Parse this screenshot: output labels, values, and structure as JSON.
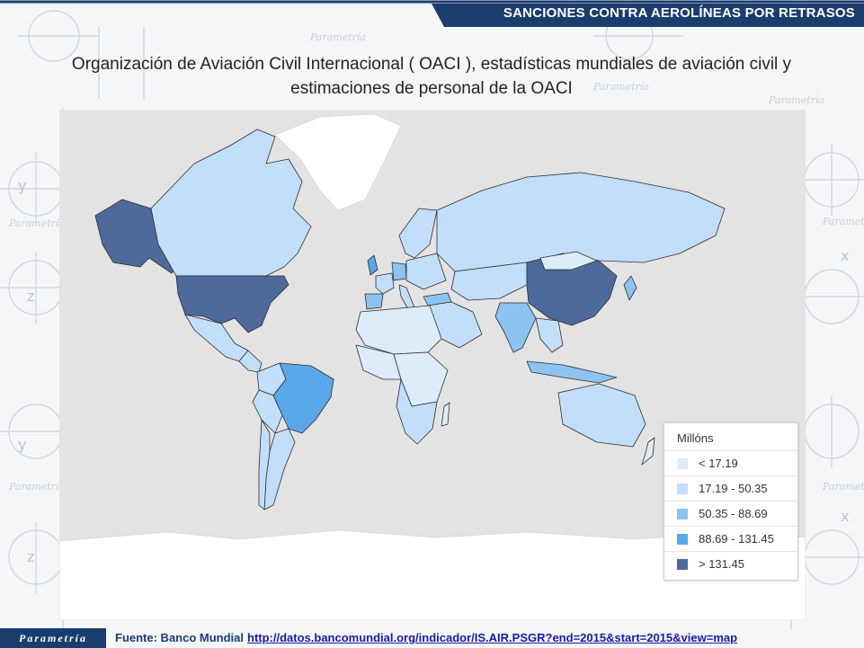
{
  "header": {
    "title": "SANCIONES CONTRA AEROLÍNEAS POR RETRASOS",
    "band_color": "#1b3d6e"
  },
  "slide": {
    "title_line1": "Organización de Aviación Civil Internacional ( OACI ), estadísticas mundiales de aviación civil y",
    "title_line2": "estimaciones de personal de la OACI"
  },
  "watermark": {
    "brand_text": "Parametría",
    "glyphs": [
      "y",
      "z",
      "x"
    ]
  },
  "map": {
    "ocean_color": "#e3e3e3",
    "nodata_color": "#ffffff",
    "border_color": "#2e2e2e",
    "regions": [
      {
        "name": "United States",
        "bin": 4
      },
      {
        "name": "Alaska",
        "bin": 4
      },
      {
        "name": "China",
        "bin": 4
      },
      {
        "name": "Brazil",
        "bin": 3
      },
      {
        "name": "India",
        "bin": 2
      },
      {
        "name": "Turkey",
        "bin": 2
      },
      {
        "name": "Germany",
        "bin": 2
      },
      {
        "name": "United Kingdom",
        "bin": 3
      },
      {
        "name": "Spain",
        "bin": 2
      },
      {
        "name": "Canada",
        "bin": 1
      },
      {
        "name": "Russia",
        "bin": 1
      },
      {
        "name": "Mexico",
        "bin": 1
      },
      {
        "name": "Australia",
        "bin": 1
      },
      {
        "name": "Indonesia",
        "bin": 2
      },
      {
        "name": "Japan",
        "bin": 2
      },
      {
        "name": "Greenland",
        "bin": -1
      }
    ]
  },
  "legend": {
    "title": "Millóns",
    "bins": [
      {
        "label": "< 17.19",
        "color": "#dcecfb"
      },
      {
        "label": "17.19 - 50.35",
        "color": "#c3defa"
      },
      {
        "label": "50.35 - 88.69",
        "color": "#8cc3f0"
      },
      {
        "label": "88.69 - 131.45",
        "color": "#5aa6ea"
      },
      {
        "label": "> 131.45",
        "color": "#4e6a9a"
      }
    ]
  },
  "footer": {
    "logo": "Parametría",
    "source_label": "Fuente: Banco Mundial",
    "source_url": "http://datos.bancomundial.org/indicador/IS.AIR.PSGR?end=2015&start=2015&view=map"
  }
}
